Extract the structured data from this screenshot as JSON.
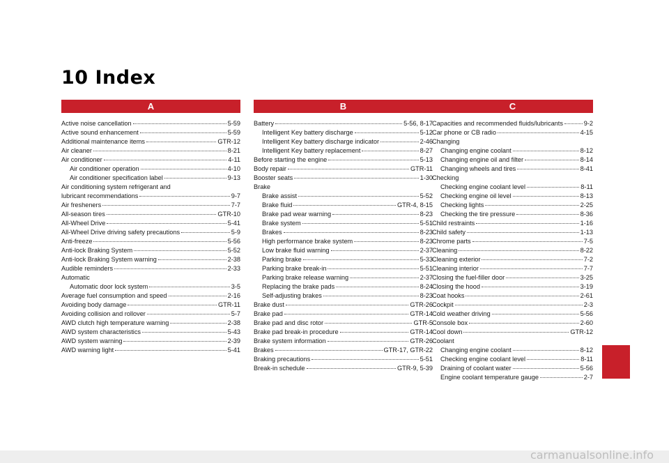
{
  "title": "10 Index",
  "columns": [
    {
      "letter": "A",
      "entries": [
        {
          "label": "Active noise cancellation",
          "page": "5-59"
        },
        {
          "label": "Active sound enhancement",
          "page": "5-59"
        },
        {
          "label": "Additional maintenance items",
          "page": "GTR-12"
        },
        {
          "label": "Air cleaner",
          "page": "8-21"
        },
        {
          "label": "Air conditioner",
          "page": "4-11"
        },
        {
          "label": "Air conditioner operation",
          "page": "4-10",
          "sub": true
        },
        {
          "label": "Air conditioner specification label",
          "page": "9-13",
          "sub": true
        },
        {
          "label": "Air conditioning system refrigerant and",
          "page": ""
        },
        {
          "label": "lubricant recommendations",
          "page": "9-7"
        },
        {
          "label": "Air fresheners",
          "page": "7-7"
        },
        {
          "label": "All-season tires",
          "page": "GTR-10"
        },
        {
          "label": "All-Wheel Drive",
          "page": "5-41"
        },
        {
          "label": "All-Wheel Drive driving safety precautions",
          "page": "5-9"
        },
        {
          "label": "Anti-freeze",
          "page": "5-56"
        },
        {
          "label": "Anti-lock Braking System",
          "page": "5-52"
        },
        {
          "label": "Anti-lock Braking System warning",
          "page": "2-38"
        },
        {
          "label": "Audible reminders",
          "page": "2-33"
        },
        {
          "label": "Automatic",
          "page": ""
        },
        {
          "label": "Automatic door lock system",
          "page": "3-5",
          "sub": true
        },
        {
          "label": "Average fuel consumption and speed",
          "page": "2-16"
        },
        {
          "label": "Avoiding body damage",
          "page": "GTR-11"
        },
        {
          "label": "Avoiding collision and rollover",
          "page": "5-7"
        },
        {
          "label": "AWD clutch high temperature warning",
          "page": "2-38"
        },
        {
          "label": "AWD system characteristics",
          "page": "5-43"
        },
        {
          "label": "AWD system warning",
          "page": "2-39"
        },
        {
          "label": "AWD warning light",
          "page": "5-41"
        }
      ]
    },
    {
      "letter": "B",
      "entries": [
        {
          "label": "Battery",
          "page": "5-56, 8-17"
        },
        {
          "label": "Intelligent Key battery discharge",
          "page": "5-12",
          "sub": true
        },
        {
          "label": "Intelligent Key battery discharge indicator",
          "page": "2-46",
          "sub": true
        },
        {
          "label": "Intelligent Key battery replacement",
          "page": "8-27",
          "sub": true
        },
        {
          "label": "Before starting the engine",
          "page": "5-13"
        },
        {
          "label": "Body repair",
          "page": "GTR-11"
        },
        {
          "label": "Booster seats",
          "page": "1-30"
        },
        {
          "label": "Brake",
          "page": ""
        },
        {
          "label": "Brake assist",
          "page": "5-52",
          "sub": true
        },
        {
          "label": "Brake fluid",
          "page": "GTR-4, 8-15",
          "sub": true
        },
        {
          "label": "Brake pad wear warning",
          "page": "8-23",
          "sub": true
        },
        {
          "label": "Brake system",
          "page": "5-51",
          "sub": true
        },
        {
          "label": "Brakes",
          "page": "8-23",
          "sub": true
        },
        {
          "label": "High performance brake system",
          "page": "8-23",
          "sub": true
        },
        {
          "label": "Low brake fluid warning",
          "page": "2-37",
          "sub": true
        },
        {
          "label": "Parking brake",
          "page": "5-33",
          "sub": true
        },
        {
          "label": "Parking brake break-in",
          "page": "5-51",
          "sub": true
        },
        {
          "label": "Parking brake release warning",
          "page": "2-37",
          "sub": true
        },
        {
          "label": "Replacing the brake pads",
          "page": "8-24",
          "sub": true
        },
        {
          "label": "Self-adjusting brakes",
          "page": "8-23",
          "sub": true
        },
        {
          "label": "Brake dust",
          "page": "GTR-26"
        },
        {
          "label": "Brake pad",
          "page": "GTR-14"
        },
        {
          "label": "Brake pad and disc rotor",
          "page": "GTR-5"
        },
        {
          "label": "Brake pad break-in procedure",
          "page": "GTR-14"
        },
        {
          "label": "Brake system information",
          "page": "GTR-26"
        },
        {
          "label": "Brakes",
          "page": "GTR-17, GTR-22"
        },
        {
          "label": "Braking precautions",
          "page": "5-51"
        },
        {
          "label": "Break-in schedule",
          "page": "GTR-9, 5-39"
        }
      ]
    },
    {
      "letter": "C",
      "entries": [
        {
          "label": "Capacities and recommended fluids/lubricants",
          "page": "9-2"
        },
        {
          "label": "Car phone or CB radio",
          "page": "4-15"
        },
        {
          "label": "Changing",
          "page": ""
        },
        {
          "label": "Changing engine coolant",
          "page": "8-12",
          "sub": true
        },
        {
          "label": "Changing engine oil and filter",
          "page": "8-14",
          "sub": true
        },
        {
          "label": "Changing wheels and tires",
          "page": "8-41",
          "sub": true
        },
        {
          "label": "Checking",
          "page": ""
        },
        {
          "label": "Checking engine coolant level",
          "page": "8-11",
          "sub": true
        },
        {
          "label": "Checking engine oil level",
          "page": "8-13",
          "sub": true
        },
        {
          "label": "Checking lights",
          "page": "2-25",
          "sub": true
        },
        {
          "label": "Checking the tire pressure",
          "page": "8-36",
          "sub": true
        },
        {
          "label": "Child restraints",
          "page": "1-16"
        },
        {
          "label": "Child safety",
          "page": "1-13"
        },
        {
          "label": "Chrome parts",
          "page": "7-5"
        },
        {
          "label": "Cleaning",
          "page": "8-22"
        },
        {
          "label": "Cleaning exterior",
          "page": "7-2"
        },
        {
          "label": "Cleaning interior",
          "page": "7-7"
        },
        {
          "label": "Closing the fuel-filler door",
          "page": "3-25"
        },
        {
          "label": "Closing the hood",
          "page": "3-19"
        },
        {
          "label": "Coat hooks",
          "page": "2-61"
        },
        {
          "label": "Cockpit",
          "page": "2-3"
        },
        {
          "label": "Cold weather driving",
          "page": "5-56"
        },
        {
          "label": "Console box",
          "page": "2-60"
        },
        {
          "label": "Cool down",
          "page": "GTR-12"
        },
        {
          "label": "Coolant",
          "page": ""
        },
        {
          "label": "Changing engine coolant",
          "page": "8-12",
          "sub": true
        },
        {
          "label": "Checking engine coolant level",
          "page": "8-11",
          "sub": true
        },
        {
          "label": "Draining of coolant water",
          "page": "5-56",
          "sub": true
        },
        {
          "label": "Engine coolant temperature gauge",
          "page": "2-7",
          "sub": true
        }
      ]
    }
  ],
  "watermark": "carmanualsonline.info",
  "colors": {
    "accent": "#c8202a"
  }
}
